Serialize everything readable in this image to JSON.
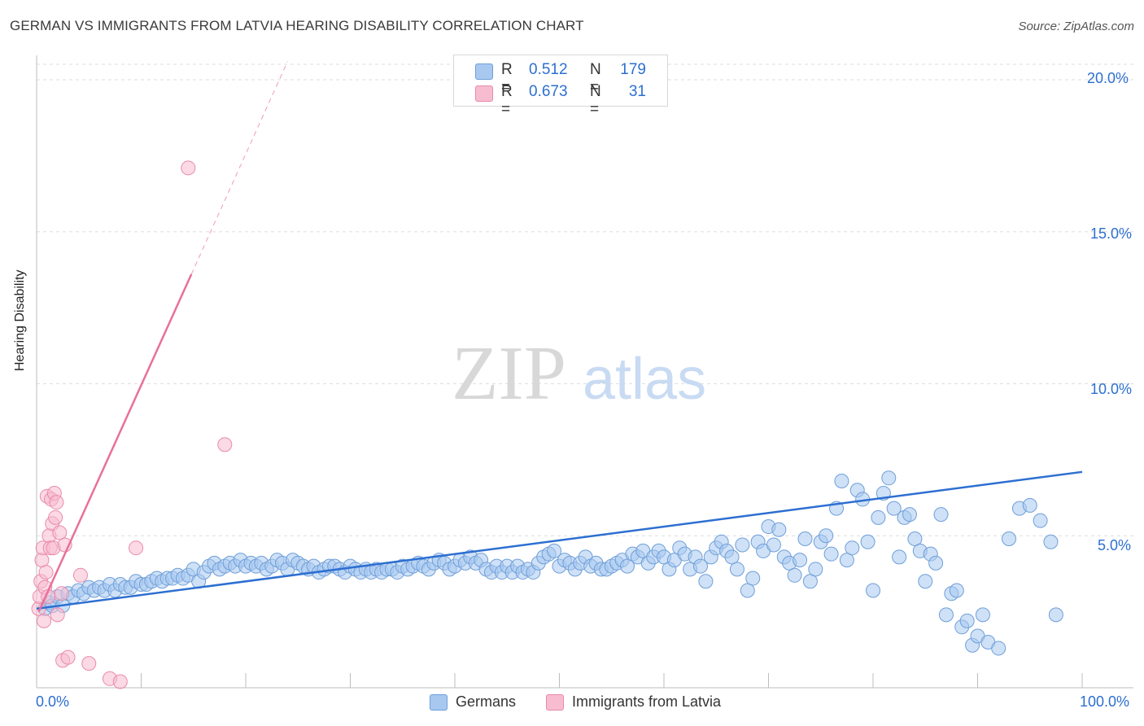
{
  "header": {
    "title": "GERMAN VS IMMIGRANTS FROM LATVIA HEARING DISABILITY CORRELATION CHART",
    "source": "Source: ZipAtlas.com"
  },
  "watermark": {
    "zip": "ZIP",
    "atlas": "atlas"
  },
  "legend": {
    "rows": [
      {
        "r_label": "R =",
        "r_value": "0.512",
        "n_label": "N =",
        "n_value": "179",
        "color": "#a8c8f0",
        "stroke": "#6f9fd8"
      },
      {
        "r_label": "R =",
        "r_value": "0.673",
        "n_label": "N =",
        "n_value": "31",
        "color": "#f7bcd0",
        "stroke": "#e98aab"
      }
    ]
  },
  "bottom_legend": {
    "germans": "Germans",
    "latvia": "Immigrants from Latvia"
  },
  "axes": {
    "ylabel": "Hearing Disability",
    "x_min_label": "0.0%",
    "x_max_label": "100.0%",
    "y_ticks": [
      "5.0%",
      "10.0%",
      "15.0%",
      "20.0%"
    ]
  },
  "chart_data": {
    "type": "scatter",
    "title": "GERMAN VS IMMIGRANTS FROM LATVIA HEARING DISABILITY CORRELATION CHART",
    "xlabel": "",
    "ylabel": "Hearing Disability",
    "xlim": [
      0,
      100
    ],
    "ylim": [
      0,
      20
    ],
    "grid": true,
    "legend_position": "top-center",
    "series": [
      {
        "name": "Germans",
        "color": "#a8c8f0",
        "stroke": "#6f9fd8",
        "trend": {
          "x": [
            0,
            100
          ],
          "y": [
            2.6,
            7.1
          ],
          "color": "#2d6fd1"
        },
        "points": [
          [
            0.8,
            2.6
          ],
          [
            1.2,
            2.8
          ],
          [
            1.5,
            2.7
          ],
          [
            2.0,
            3.0
          ],
          [
            2.5,
            2.7
          ],
          [
            3.0,
            3.1
          ],
          [
            3.5,
            3.0
          ],
          [
            4.0,
            3.2
          ],
          [
            4.5,
            3.1
          ],
          [
            5.0,
            3.3
          ],
          [
            5.5,
            3.2
          ],
          [
            6.0,
            3.3
          ],
          [
            6.5,
            3.2
          ],
          [
            7.0,
            3.4
          ],
          [
            7.5,
            3.2
          ],
          [
            8.0,
            3.4
          ],
          [
            8.5,
            3.3
          ],
          [
            9.0,
            3.3
          ],
          [
            9.5,
            3.5
          ],
          [
            10.0,
            3.4
          ],
          [
            10.5,
            3.4
          ],
          [
            11.0,
            3.5
          ],
          [
            11.5,
            3.6
          ],
          [
            12.0,
            3.5
          ],
          [
            12.5,
            3.6
          ],
          [
            13.0,
            3.6
          ],
          [
            13.5,
            3.7
          ],
          [
            14.0,
            3.6
          ],
          [
            14.5,
            3.7
          ],
          [
            15.0,
            3.9
          ],
          [
            15.5,
            3.5
          ],
          [
            16.0,
            3.8
          ],
          [
            16.5,
            4.0
          ],
          [
            17.0,
            4.1
          ],
          [
            17.5,
            3.9
          ],
          [
            18.0,
            4.0
          ],
          [
            18.5,
            4.1
          ],
          [
            19.0,
            4.0
          ],
          [
            19.5,
            4.2
          ],
          [
            20.0,
            4.0
          ],
          [
            20.5,
            4.1
          ],
          [
            21.0,
            4.0
          ],
          [
            21.5,
            4.1
          ],
          [
            22.0,
            3.9
          ],
          [
            22.5,
            4.0
          ],
          [
            23.0,
            4.2
          ],
          [
            23.5,
            4.1
          ],
          [
            24.0,
            3.9
          ],
          [
            24.5,
            4.2
          ],
          [
            25.0,
            4.1
          ],
          [
            25.5,
            4.0
          ],
          [
            26.0,
            3.9
          ],
          [
            26.5,
            4.0
          ],
          [
            27.0,
            3.8
          ],
          [
            27.5,
            3.9
          ],
          [
            28.0,
            4.0
          ],
          [
            28.5,
            4.0
          ],
          [
            29.0,
            3.9
          ],
          [
            29.5,
            3.8
          ],
          [
            30.0,
            4.0
          ],
          [
            30.5,
            3.9
          ],
          [
            31.0,
            3.8
          ],
          [
            31.5,
            3.9
          ],
          [
            32.0,
            3.8
          ],
          [
            32.5,
            3.9
          ],
          [
            33.0,
            3.8
          ],
          [
            33.5,
            3.9
          ],
          [
            34.0,
            3.9
          ],
          [
            34.5,
            3.8
          ],
          [
            35.0,
            4.0
          ],
          [
            35.5,
            3.9
          ],
          [
            36.0,
            4.0
          ],
          [
            36.5,
            4.1
          ],
          [
            37.0,
            4.0
          ],
          [
            37.5,
            3.9
          ],
          [
            38.0,
            4.1
          ],
          [
            38.5,
            4.2
          ],
          [
            39.0,
            4.1
          ],
          [
            39.5,
            3.9
          ],
          [
            40.0,
            4.0
          ],
          [
            40.5,
            4.2
          ],
          [
            41.0,
            4.1
          ],
          [
            41.5,
            4.3
          ],
          [
            42.0,
            4.1
          ],
          [
            42.5,
            4.2
          ],
          [
            43.0,
            3.9
          ],
          [
            43.5,
            3.8
          ],
          [
            44.0,
            4.0
          ],
          [
            44.5,
            3.8
          ],
          [
            45.0,
            4.0
          ],
          [
            45.5,
            3.8
          ],
          [
            46.0,
            4.0
          ],
          [
            46.5,
            3.8
          ],
          [
            47.0,
            3.9
          ],
          [
            47.5,
            3.8
          ],
          [
            48.0,
            4.1
          ],
          [
            48.5,
            4.3
          ],
          [
            49.0,
            4.4
          ],
          [
            49.5,
            4.5
          ],
          [
            50.0,
            4.0
          ],
          [
            50.5,
            4.2
          ],
          [
            51.0,
            4.1
          ],
          [
            51.5,
            3.9
          ],
          [
            52.0,
            4.1
          ],
          [
            52.5,
            4.3
          ],
          [
            53.0,
            4.0
          ],
          [
            53.5,
            4.1
          ],
          [
            54.0,
            3.9
          ],
          [
            54.5,
            3.9
          ],
          [
            55.0,
            4.0
          ],
          [
            55.5,
            4.1
          ],
          [
            56.0,
            4.2
          ],
          [
            56.5,
            4.0
          ],
          [
            57.0,
            4.4
          ],
          [
            57.5,
            4.3
          ],
          [
            58.0,
            4.5
          ],
          [
            58.5,
            4.1
          ],
          [
            59.0,
            4.3
          ],
          [
            59.5,
            4.5
          ],
          [
            60.0,
            4.3
          ],
          [
            60.5,
            3.9
          ],
          [
            61.0,
            4.2
          ],
          [
            61.5,
            4.6
          ],
          [
            62.0,
            4.4
          ],
          [
            62.5,
            3.9
          ],
          [
            63.0,
            4.3
          ],
          [
            63.5,
            4.0
          ],
          [
            64.0,
            3.5
          ],
          [
            64.5,
            4.3
          ],
          [
            65.0,
            4.6
          ],
          [
            65.5,
            4.8
          ],
          [
            66.0,
            4.5
          ],
          [
            66.5,
            4.3
          ],
          [
            67.0,
            3.9
          ],
          [
            67.5,
            4.7
          ],
          [
            68.0,
            3.2
          ],
          [
            68.5,
            3.6
          ],
          [
            69.0,
            4.8
          ],
          [
            69.5,
            4.5
          ],
          [
            70.0,
            5.3
          ],
          [
            70.5,
            4.7
          ],
          [
            71.0,
            5.2
          ],
          [
            71.5,
            4.3
          ],
          [
            72.0,
            4.1
          ],
          [
            72.5,
            3.7
          ],
          [
            73.0,
            4.2
          ],
          [
            73.5,
            4.9
          ],
          [
            74.0,
            3.5
          ],
          [
            74.5,
            3.9
          ],
          [
            75.0,
            4.8
          ],
          [
            75.5,
            5.0
          ],
          [
            76.0,
            4.4
          ],
          [
            76.5,
            5.9
          ],
          [
            77.0,
            6.8
          ],
          [
            77.5,
            4.2
          ],
          [
            78.0,
            4.6
          ],
          [
            78.5,
            6.5
          ],
          [
            79.0,
            6.2
          ],
          [
            79.5,
            4.8
          ],
          [
            80.0,
            3.2
          ],
          [
            80.5,
            5.6
          ],
          [
            81.0,
            6.4
          ],
          [
            81.5,
            6.9
          ],
          [
            82.0,
            5.9
          ],
          [
            82.5,
            4.3
          ],
          [
            83.0,
            5.6
          ],
          [
            83.5,
            5.7
          ],
          [
            84.0,
            4.9
          ],
          [
            84.5,
            4.5
          ],
          [
            85.0,
            3.5
          ],
          [
            85.5,
            4.4
          ],
          [
            86.0,
            4.1
          ],
          [
            86.5,
            5.7
          ],
          [
            87.0,
            2.4
          ],
          [
            87.5,
            3.1
          ],
          [
            88.0,
            3.2
          ],
          [
            88.5,
            2.0
          ],
          [
            89.0,
            2.2
          ],
          [
            89.5,
            1.4
          ],
          [
            90.0,
            1.7
          ],
          [
            90.5,
            2.4
          ],
          [
            91.0,
            1.5
          ],
          [
            92.0,
            1.3
          ],
          [
            93.0,
            4.9
          ],
          [
            94.0,
            5.9
          ],
          [
            95.0,
            6.0
          ],
          [
            96.0,
            5.5
          ],
          [
            97.0,
            4.8
          ],
          [
            97.5,
            2.4
          ]
        ]
      },
      {
        "name": "Immigrants from Latvia",
        "color": "#f7bcd0",
        "stroke": "#e98aab",
        "trend": {
          "x": [
            0.2,
            14.8
          ],
          "y": [
            2.5,
            13.6
          ],
          "dash_to": [
            24.0,
            20.6
          ],
          "color": "#e8709a"
        },
        "points": [
          [
            0.2,
            2.6
          ],
          [
            0.3,
            3.0
          ],
          [
            0.4,
            3.5
          ],
          [
            0.5,
            4.2
          ],
          [
            0.6,
            4.6
          ],
          [
            0.7,
            2.2
          ],
          [
            0.8,
            3.3
          ],
          [
            0.9,
            3.8
          ],
          [
            1.0,
            6.3
          ],
          [
            1.1,
            3.0
          ],
          [
            1.2,
            5.0
          ],
          [
            1.3,
            4.6
          ],
          [
            1.4,
            6.2
          ],
          [
            1.5,
            5.4
          ],
          [
            1.6,
            4.6
          ],
          [
            1.7,
            6.4
          ],
          [
            1.8,
            5.6
          ],
          [
            1.9,
            6.1
          ],
          [
            2.0,
            2.4
          ],
          [
            2.2,
            5.1
          ],
          [
            2.4,
            3.1
          ],
          [
            2.5,
            0.9
          ],
          [
            2.7,
            4.7
          ],
          [
            3.0,
            1.0
          ],
          [
            4.2,
            3.7
          ],
          [
            5.0,
            0.8
          ],
          [
            7.0,
            0.3
          ],
          [
            8.0,
            0.2
          ],
          [
            9.5,
            4.6
          ],
          [
            14.5,
            17.1
          ],
          [
            18.0,
            8.0
          ]
        ]
      }
    ]
  }
}
